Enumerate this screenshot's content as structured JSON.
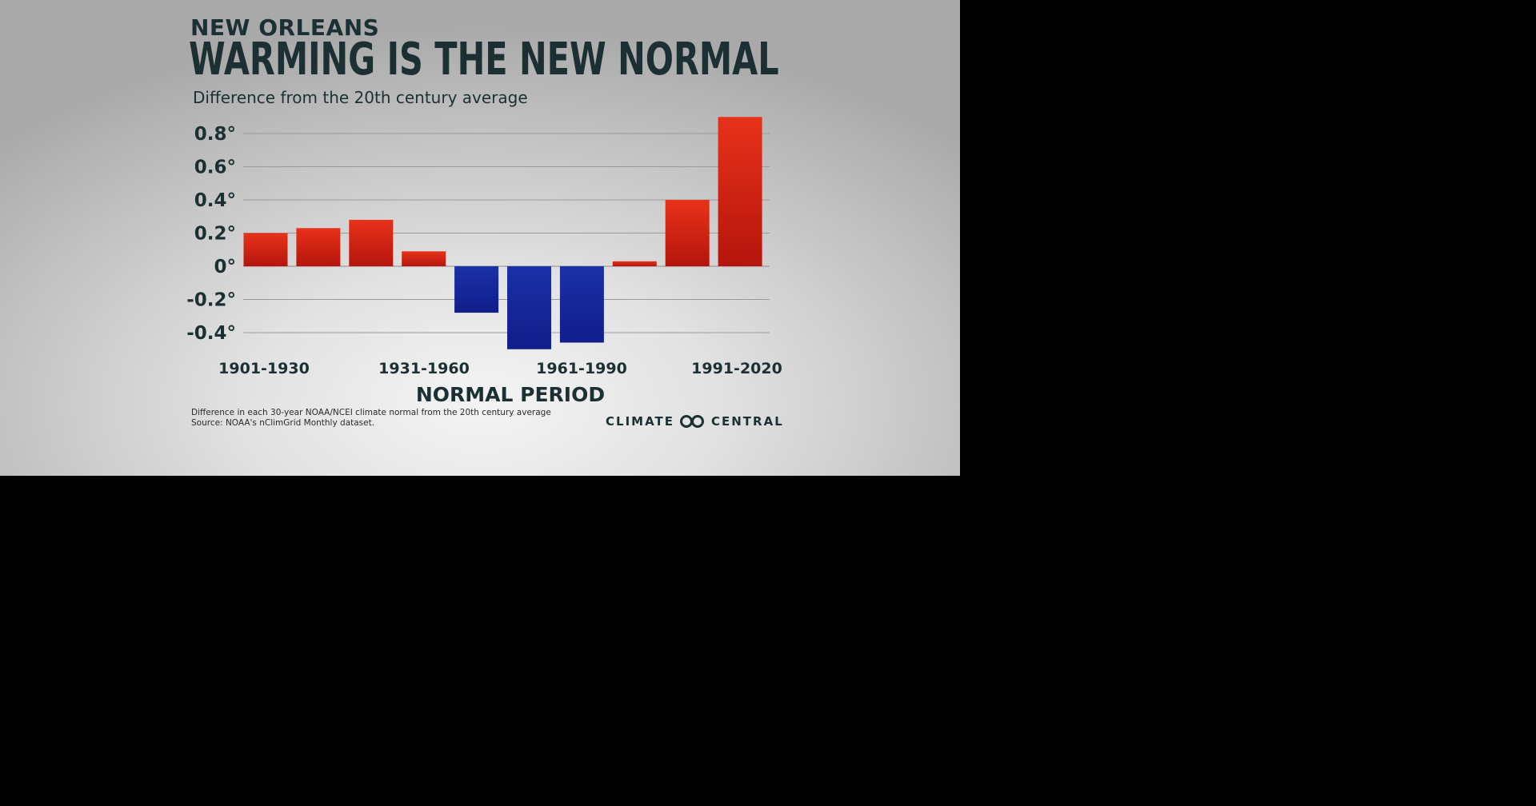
{
  "header": {
    "place": "NEW ORLEANS",
    "headline": "WARMING IS THE NEW NORMAL",
    "subtitle": "Difference from the 20th century average"
  },
  "footer": {
    "note": "Difference in each 30-year NOAA/NCEI climate normal from the 20th century average",
    "source": "Source: NOAA's nClimGrid Monthly dataset.",
    "logo_left": "CLIMATE",
    "logo_right": "CENTRAL",
    "logo_icon": "linked-rings-icon"
  },
  "chart_data": {
    "type": "bar",
    "xlabel": "NORMAL PERIOD",
    "ylabel": "",
    "ylim": [
      -0.45,
      0.9
    ],
    "yticks": [
      0.8,
      0.6,
      0.4,
      0.2,
      0,
      -0.2,
      -0.4
    ],
    "ytick_labels": [
      "0.8°",
      "0.6°",
      "0.4°",
      "0.2°",
      "0°",
      "-0.2°",
      "-0.4°"
    ],
    "x_tick_labels": [
      "1901-1930",
      "1931-1960",
      "1961-1990",
      "1991-2020"
    ],
    "grid": true,
    "values": [
      0.2,
      0.23,
      0.28,
      0.09,
      -0.28,
      -0.5,
      -0.46,
      0.03,
      0.4,
      0.9
    ],
    "colors": {
      "positive": "#c8190f",
      "positive_top": "#e8321a",
      "negative": "#1a2a9e"
    }
  }
}
